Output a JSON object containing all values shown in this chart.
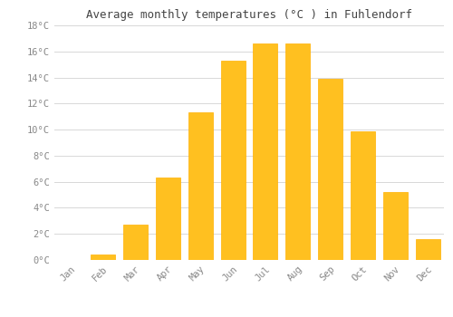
{
  "months": [
    "Jan",
    "Feb",
    "Mar",
    "Apr",
    "May",
    "Jun",
    "Jul",
    "Aug",
    "Sep",
    "Oct",
    "Nov",
    "Dec"
  ],
  "values": [
    0.0,
    0.4,
    2.7,
    6.3,
    11.3,
    15.3,
    16.6,
    16.6,
    13.9,
    9.9,
    5.2,
    1.6
  ],
  "bar_color": "#FFC020",
  "bar_edge_color": "#FFB000",
  "title": "Average monthly temperatures (°C ) in Fuhlendorf",
  "title_fontsize": 9,
  "ylim": [
    0,
    18
  ],
  "background_color": "#ffffff",
  "grid_color": "#d8d8d8",
  "tick_label_color": "#888888",
  "tick_label_fontsize": 7.5,
  "font_family": "monospace",
  "title_color": "#444444",
  "bar_width": 0.75
}
